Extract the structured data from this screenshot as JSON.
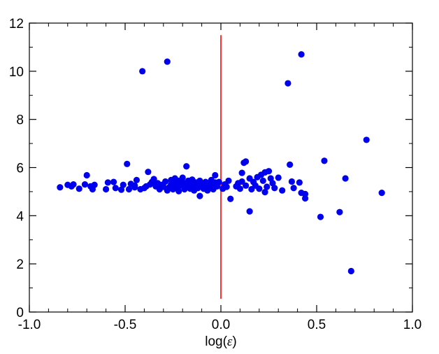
{
  "chart_data": {
    "type": "scatter",
    "xlabel": "log(ε)",
    "xlabel_parts": {
      "before": "log(",
      "symbol": "ε",
      "after": ")"
    },
    "xlim": [
      -1.0,
      1.0
    ],
    "ylim": [
      0,
      12
    ],
    "xticks": [
      -1.0,
      -0.5,
      0.0,
      0.5,
      1.0
    ],
    "xtick_labels": [
      "-1.0",
      "-0.5",
      "0.0",
      "0.5",
      "1.0"
    ],
    "yticks": [
      0,
      2,
      4,
      6,
      8,
      10,
      12
    ],
    "ytick_labels": [
      "0",
      "2",
      "4",
      "6",
      "8",
      "10",
      "12"
    ],
    "grid": false,
    "marker_color": "#0000ee",
    "reference_line": {
      "x": 0.0,
      "y_from": 0.55,
      "y_to": 11.5,
      "color": "#ff0000"
    },
    "points": [
      [
        -0.84,
        5.18
      ],
      [
        -0.8,
        5.28
      ],
      [
        -0.78,
        5.22
      ],
      [
        -0.77,
        5.3
      ],
      [
        -0.74,
        5.12
      ],
      [
        -0.71,
        5.3
      ],
      [
        -0.7,
        5.68
      ],
      [
        -0.68,
        5.22
      ],
      [
        -0.67,
        5.1
      ],
      [
        -0.66,
        5.28
      ],
      [
        -0.6,
        5.1
      ],
      [
        -0.59,
        5.38
      ],
      [
        -0.56,
        5.4
      ],
      [
        -0.55,
        5.15
      ],
      [
        -0.52,
        5.08
      ],
      [
        -0.51,
        5.28
      ],
      [
        -0.49,
        6.15
      ],
      [
        -0.48,
        5.1
      ],
      [
        -0.47,
        5.32
      ],
      [
        -0.45,
        5.18
      ],
      [
        -0.45,
        5.25
      ],
      [
        -0.44,
        5.48
      ],
      [
        -0.42,
        5.1
      ],
      [
        -0.41,
        10.0
      ],
      [
        -0.4,
        5.15
      ],
      [
        -0.39,
        5.22
      ],
      [
        -0.38,
        5.82
      ],
      [
        -0.37,
        5.3
      ],
      [
        -0.36,
        5.4
      ],
      [
        -0.35,
        5.52
      ],
      [
        -0.34,
        5.22
      ],
      [
        -0.33,
        5.35
      ],
      [
        -0.32,
        5.1
      ],
      [
        -0.31,
        5.28
      ],
      [
        -0.3,
        5.2
      ],
      [
        -0.29,
        5.42
      ],
      [
        -0.28,
        10.4
      ],
      [
        -0.28,
        5.05
      ],
      [
        -0.27,
        5.18
      ],
      [
        -0.26,
        5.3
      ],
      [
        -0.26,
        5.48
      ],
      [
        -0.25,
        5.1
      ],
      [
        -0.25,
        5.28
      ],
      [
        -0.24,
        5.38
      ],
      [
        -0.24,
        5.55
      ],
      [
        -0.23,
        5.18
      ],
      [
        -0.23,
        5.32
      ],
      [
        -0.22,
        5.45
      ],
      [
        -0.22,
        5.02
      ],
      [
        -0.21,
        5.25
      ],
      [
        -0.2,
        5.4
      ],
      [
        -0.2,
        5.58
      ],
      [
        -0.19,
        5.1
      ],
      [
        -0.18,
        6.05
      ],
      [
        -0.18,
        5.3
      ],
      [
        -0.17,
        5.22
      ],
      [
        -0.17,
        5.45
      ],
      [
        -0.16,
        5.12
      ],
      [
        -0.16,
        5.35
      ],
      [
        -0.15,
        5.5
      ],
      [
        -0.14,
        5.2
      ],
      [
        -0.14,
        5.05
      ],
      [
        -0.13,
        5.38
      ],
      [
        -0.12,
        5.28
      ],
      [
        -0.12,
        5.15
      ],
      [
        -0.11,
        4.82
      ],
      [
        -0.11,
        5.45
      ],
      [
        -0.1,
        5.3
      ],
      [
        -0.09,
        5.12
      ],
      [
        -0.09,
        5.22
      ],
      [
        -0.08,
        5.4
      ],
      [
        -0.07,
        5.05
      ],
      [
        -0.07,
        5.35
      ],
      [
        -0.06,
        5.18
      ],
      [
        -0.05,
        5.28
      ],
      [
        -0.05,
        5.48
      ],
      [
        -0.04,
        5.1
      ],
      [
        -0.03,
        5.38
      ],
      [
        -0.03,
        5.68
      ],
      [
        -0.02,
        5.22
      ],
      [
        -0.01,
        5.4
      ],
      [
        0.01,
        5.12
      ],
      [
        0.02,
        5.3
      ],
      [
        0.03,
        5.2
      ],
      [
        0.04,
        5.45
      ],
      [
        0.05,
        4.7
      ],
      [
        0.08,
        5.22
      ],
      [
        0.09,
        5.35
      ],
      [
        0.1,
        5.12
      ],
      [
        0.11,
        5.78
      ],
      [
        0.11,
        5.42
      ],
      [
        0.12,
        6.2
      ],
      [
        0.13,
        6.25
      ],
      [
        0.13,
        5.25
      ],
      [
        0.15,
        5.55
      ],
      [
        0.15,
        4.18
      ],
      [
        0.16,
        5.1
      ],
      [
        0.17,
        5.4
      ],
      [
        0.18,
        5.25
      ],
      [
        0.19,
        5.6
      ],
      [
        0.2,
        5.12
      ],
      [
        0.21,
        5.7
      ],
      [
        0.22,
        5.45
      ],
      [
        0.23,
        5.8
      ],
      [
        0.23,
        4.98
      ],
      [
        0.24,
        5.2
      ],
      [
        0.25,
        5.85
      ],
      [
        0.26,
        5.55
      ],
      [
        0.27,
        5.35
      ],
      [
        0.28,
        5.15
      ],
      [
        0.3,
        5.58
      ],
      [
        0.32,
        5.05
      ],
      [
        0.35,
        9.5
      ],
      [
        0.36,
        6.12
      ],
      [
        0.37,
        5.42
      ],
      [
        0.38,
        5.15
      ],
      [
        0.41,
        5.38
      ],
      [
        0.42,
        10.7
      ],
      [
        0.42,
        4.95
      ],
      [
        0.44,
        4.9
      ],
      [
        0.44,
        4.72
      ],
      [
        0.52,
        3.95
      ],
      [
        0.54,
        6.28
      ],
      [
        0.62,
        4.15
      ],
      [
        0.65,
        5.55
      ],
      [
        0.68,
        1.7
      ],
      [
        0.76,
        7.15
      ],
      [
        0.84,
        4.95
      ]
    ]
  }
}
